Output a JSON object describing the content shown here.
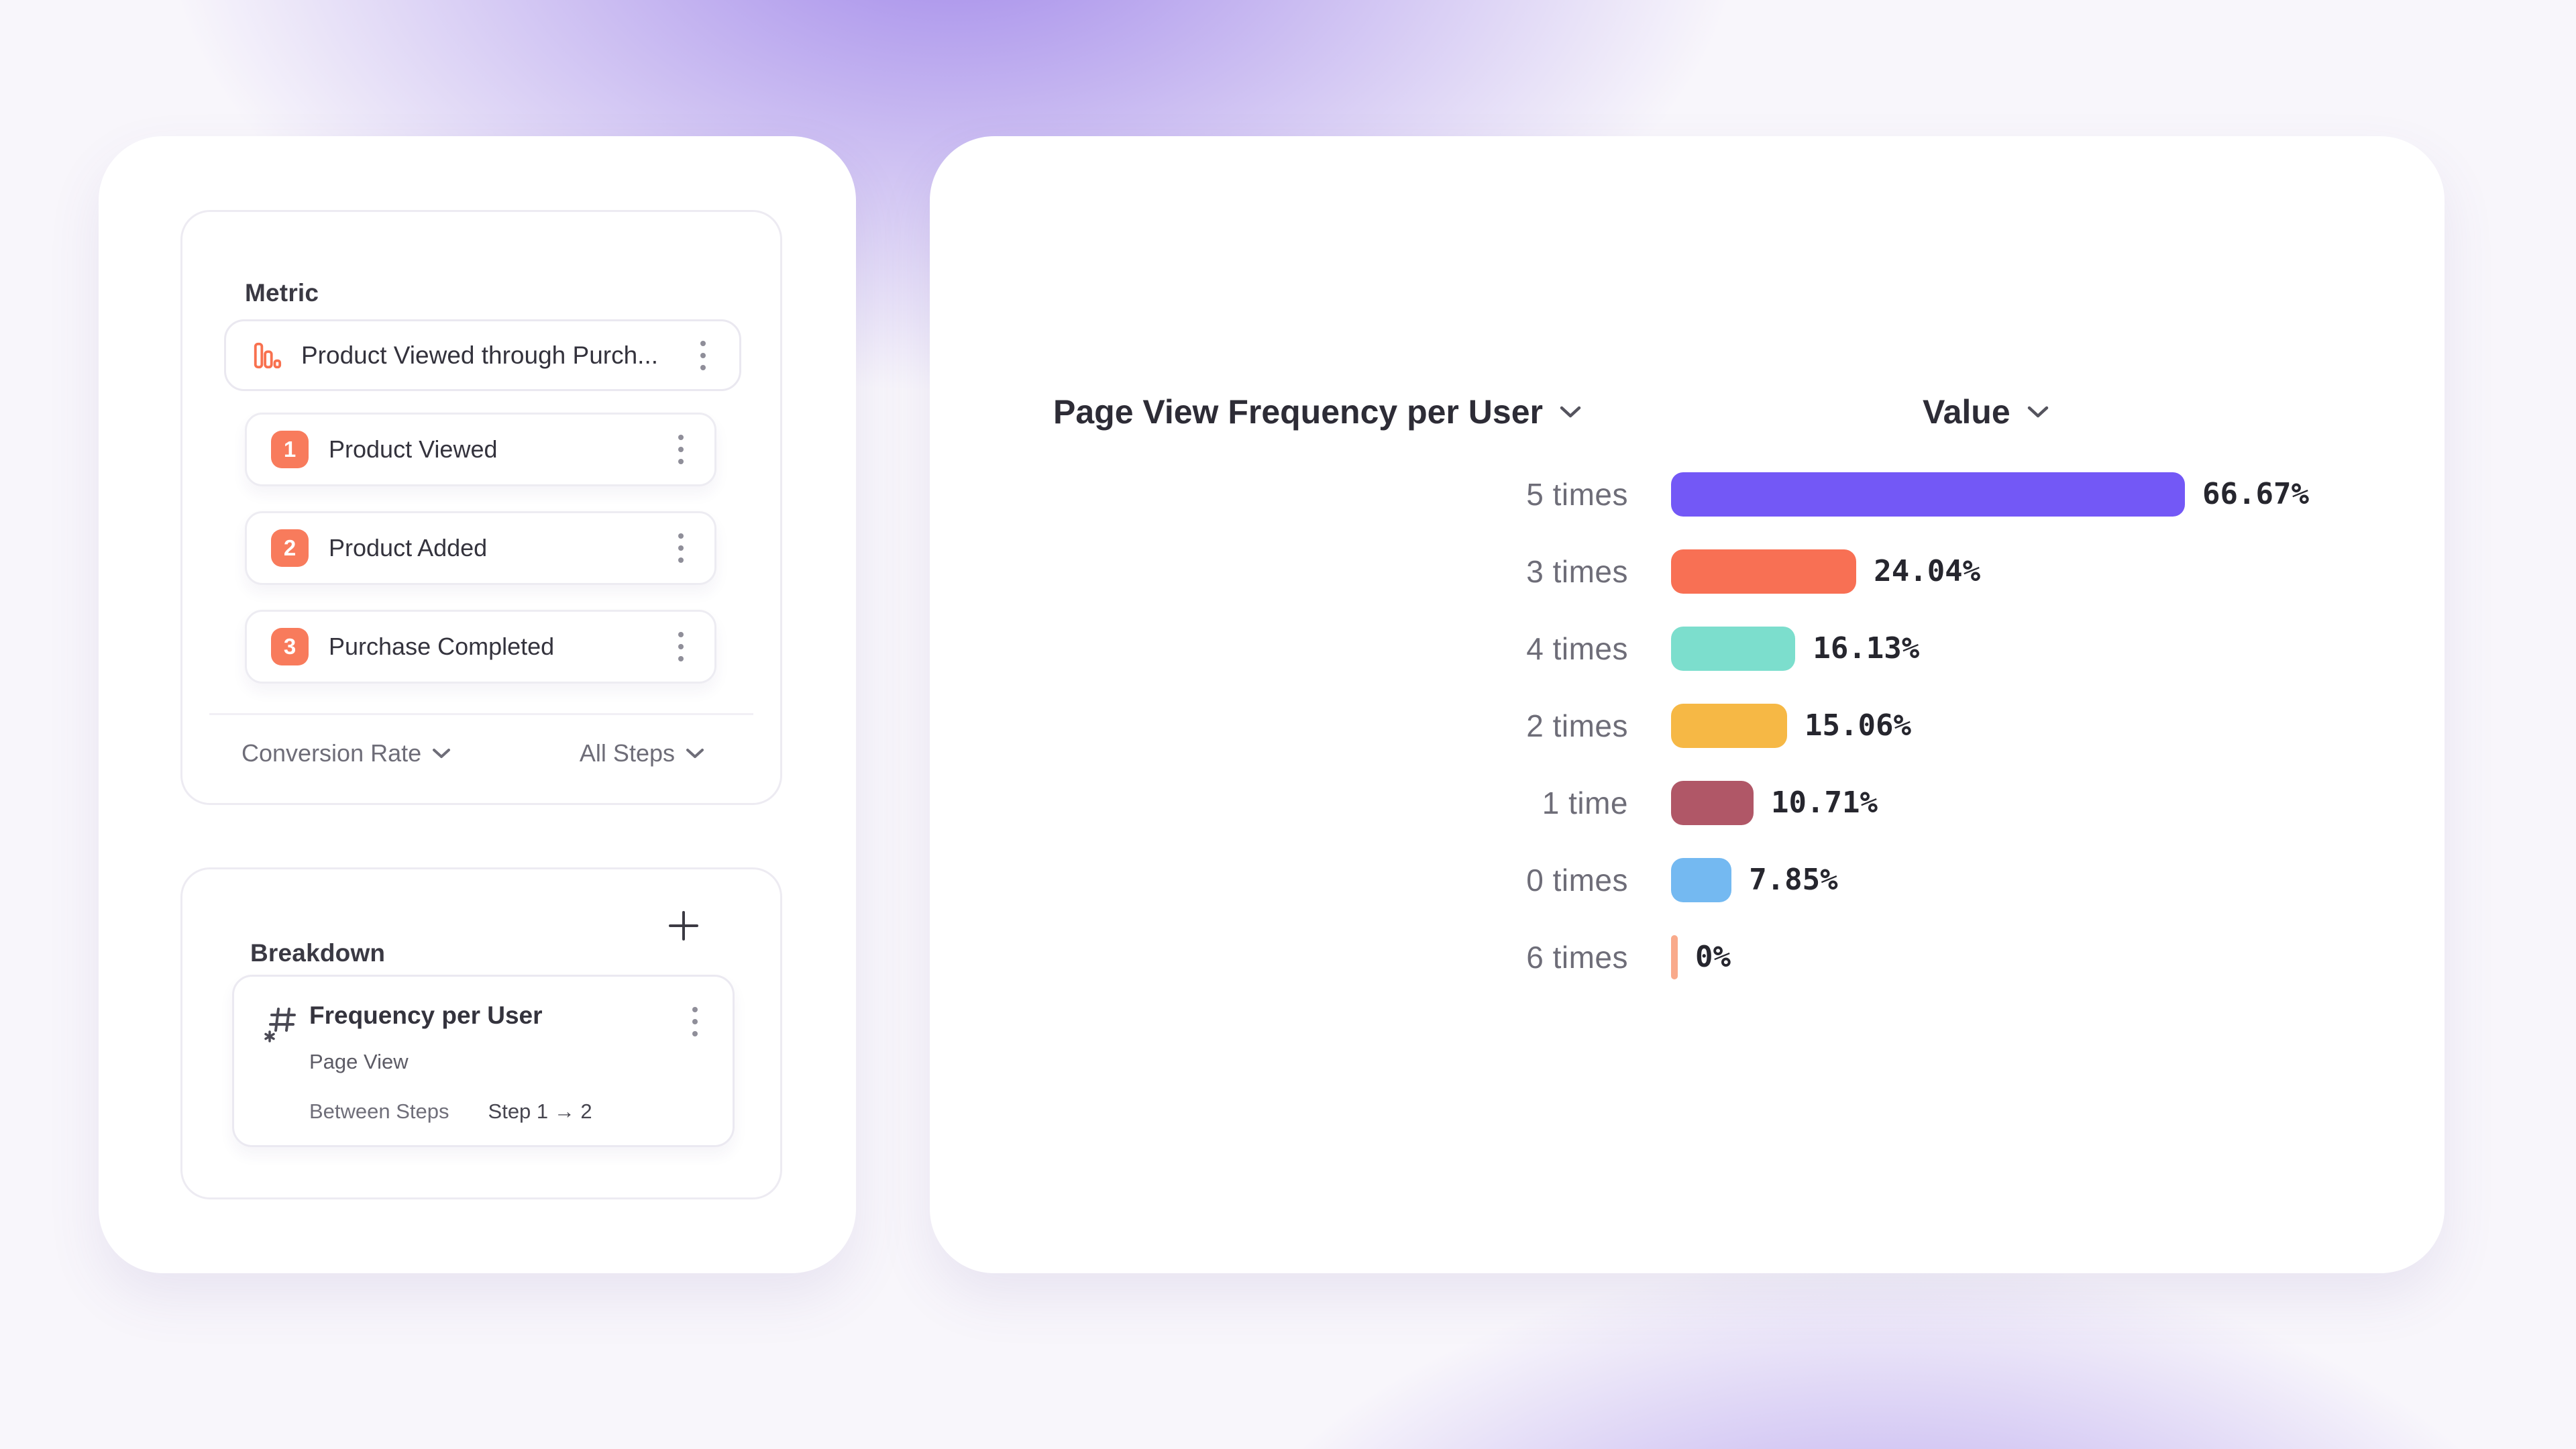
{
  "colors": {
    "accent_orange": "#F8714F",
    "badge_orange": "#F87B5C",
    "bar_purple": "#7358F6",
    "bar_orange": "#F87054",
    "bar_teal": "#7CDECD",
    "bar_amber": "#F6B845",
    "bar_maroon": "#B05767",
    "bar_blue": "#74B9F1",
    "bar_salmon": "#F9AA8B",
    "text_dark": "#33323c",
    "text_gray": "#6e6d78"
  },
  "icons": {
    "metric_item_icon": "bar-chart-icon",
    "breakdown_item_icon": "hash-asterisk-icon",
    "menu_icon": "kebab-menu-icon",
    "add_icon": "plus-icon",
    "dropdown_icon": "chevron-down-icon"
  },
  "metric_panel": {
    "title": "Metric",
    "metric_item": {
      "label": "Product Viewed through Purch..."
    },
    "steps": [
      {
        "number": "1",
        "label": "Product Viewed"
      },
      {
        "number": "2",
        "label": "Product Added"
      },
      {
        "number": "3",
        "label": "Purchase Completed"
      }
    ],
    "conversion_dropdown": "Conversion Rate",
    "steps_dropdown": "All Steps"
  },
  "breakdown_panel": {
    "title": "Breakdown",
    "item": {
      "title": "Frequency per User",
      "event": "Page View",
      "scope_label": "Between Steps",
      "scope_value": "Step 1 → 2"
    }
  },
  "chart_panel": {
    "x_axis_dropdown": "Page View Frequency per User",
    "value_dropdown": "Value"
  },
  "chart_data": {
    "type": "bar",
    "orientation": "horizontal",
    "title": "Page View Frequency per User",
    "value_column": "Value",
    "categories": [
      "5 times",
      "3 times",
      "4 times",
      "2 times",
      "1 time",
      "0 times",
      "6 times"
    ],
    "values": [
      66.67,
      24.04,
      16.13,
      15.06,
      10.71,
      7.85,
      0
    ],
    "value_labels": [
      "66.67%",
      "24.04%",
      "16.13%",
      "15.06%",
      "10.71%",
      "7.85%",
      "0%"
    ],
    "bar_colors": [
      "#7358F6",
      "#F87054",
      "#7CDECD",
      "#F6B845",
      "#B05767",
      "#74B9F1",
      "#F9AA8B"
    ],
    "unit": "%",
    "xlim": [
      0,
      100
    ],
    "grid": false,
    "legend": false
  }
}
